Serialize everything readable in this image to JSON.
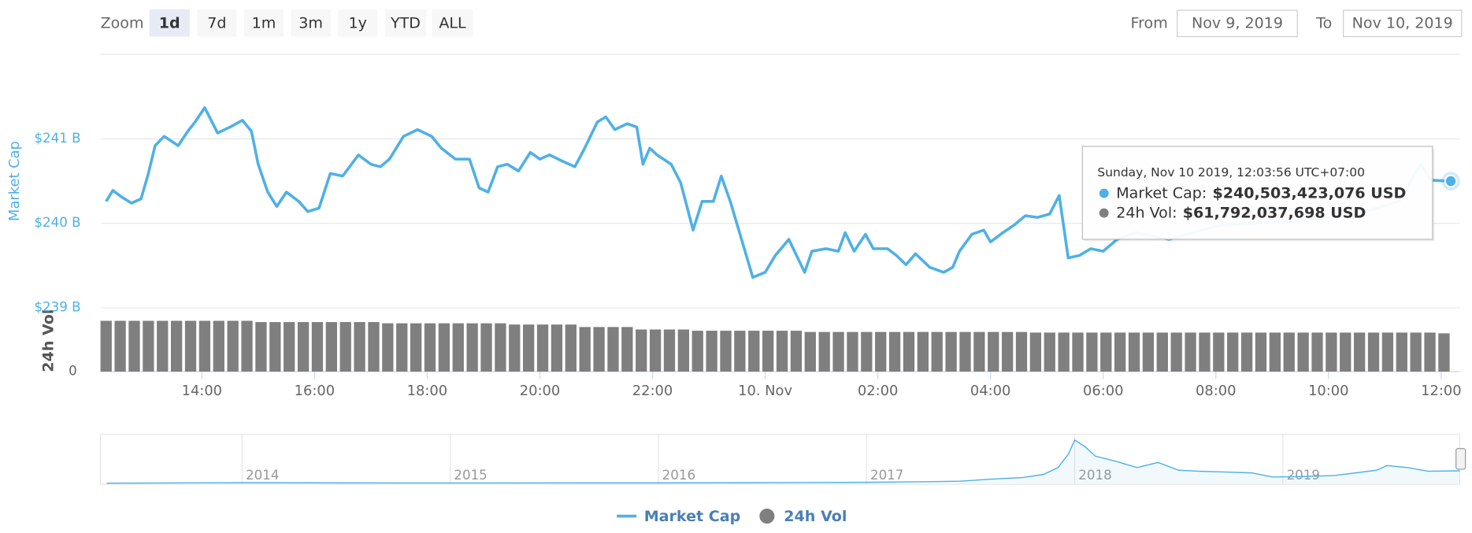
{
  "range_selector": {
    "label": "Zoom",
    "buttons": [
      "1d",
      "7d",
      "1m",
      "3m",
      "1y",
      "YTD",
      "ALL"
    ],
    "selected": "1d",
    "from_label": "From",
    "from": "Nov 9, 2019",
    "to_label": "To",
    "to": "Nov 10, 2019"
  },
  "chart_data": [
    {
      "type": "line",
      "ylabel": "Market Cap",
      "y2label": "24h Vol",
      "xlim": [
        12.2,
        36.33
      ],
      "xticks": [
        {
          "value": 14,
          "label": "14:00"
        },
        {
          "value": 16,
          "label": "16:00"
        },
        {
          "value": 18,
          "label": "18:00"
        },
        {
          "value": 20,
          "label": "20:00"
        },
        {
          "value": 22,
          "label": "22:00"
        },
        {
          "value": 24,
          "label": "10. Nov"
        },
        {
          "value": 26,
          "label": "02:00"
        },
        {
          "value": 28,
          "label": "04:00"
        },
        {
          "value": 30,
          "label": "06:00"
        },
        {
          "value": 32,
          "label": "08:00"
        },
        {
          "value": 34,
          "label": "10:00"
        },
        {
          "value": 36,
          "label": "12:00"
        }
      ],
      "ylim": [
        239,
        242
      ],
      "yticks": [
        {
          "value": 239,
          "label": "$239 B"
        },
        {
          "value": 240,
          "label": "$240 B"
        },
        {
          "value": 241,
          "label": "$241 B"
        }
      ],
      "y2lim": [
        0,
        100
      ],
      "y2ticks": [
        0
      ],
      "grid": true,
      "series": [
        {
          "name": "Market Cap",
          "color": "#4fb0e6",
          "x": [
            12.3,
            12.42,
            12.58,
            12.75,
            12.92,
            13.05,
            13.17,
            13.33,
            13.58,
            13.75,
            13.88,
            14.05,
            14.28,
            14.5,
            14.72,
            14.88,
            15.0,
            15.17,
            15.33,
            15.5,
            15.72,
            15.88,
            16.08,
            16.28,
            16.5,
            16.78,
            17.0,
            17.17,
            17.33,
            17.58,
            17.83,
            18.08,
            18.25,
            18.5,
            18.75,
            18.92,
            19.08,
            19.25,
            19.42,
            19.62,
            19.83,
            20.0,
            20.17,
            20.42,
            20.62,
            20.78,
            21.02,
            21.17,
            21.33,
            21.55,
            21.72,
            21.83,
            21.95,
            22.08,
            22.33,
            22.5,
            22.72,
            22.88,
            23.08,
            23.22,
            23.38,
            23.58,
            23.78,
            24.0,
            24.18,
            24.42,
            24.7,
            24.83,
            25.08,
            25.3,
            25.42,
            25.58,
            25.78,
            25.92,
            26.17,
            26.33,
            26.5,
            26.67,
            26.92,
            27.17,
            27.33,
            27.45,
            27.67,
            27.88,
            28.0,
            28.22,
            28.42,
            28.62,
            28.83,
            29.05,
            29.22,
            29.38,
            29.58,
            29.78,
            30.0,
            30.25,
            30.58,
            31.17,
            32.08,
            33.42,
            34.42,
            35.25,
            35.63,
            35.83,
            36.17
          ],
          "values": [
            240.26,
            240.39,
            240.31,
            240.24,
            240.29,
            240.59,
            240.92,
            241.03,
            240.92,
            241.09,
            241.2,
            241.37,
            241.07,
            241.14,
            241.22,
            241.09,
            240.7,
            240.37,
            240.2,
            240.37,
            240.26,
            240.14,
            240.18,
            240.59,
            240.56,
            240.81,
            240.7,
            240.67,
            240.76,
            241.03,
            241.11,
            241.03,
            240.89,
            240.76,
            240.76,
            240.42,
            240.37,
            240.67,
            240.7,
            240.62,
            240.84,
            240.76,
            240.81,
            240.73,
            240.67,
            240.87,
            241.2,
            241.26,
            241.11,
            241.18,
            241.14,
            240.7,
            240.89,
            240.81,
            240.7,
            240.48,
            239.92,
            240.26,
            240.26,
            240.56,
            240.26,
            239.81,
            239.36,
            239.42,
            239.62,
            239.81,
            239.42,
            239.67,
            239.7,
            239.67,
            239.89,
            239.67,
            239.87,
            239.7,
            239.7,
            239.62,
            239.51,
            239.64,
            239.48,
            239.42,
            239.48,
            239.67,
            239.87,
            239.92,
            239.78,
            239.89,
            239.98,
            240.09,
            240.07,
            240.11,
            240.33,
            239.59,
            239.62,
            239.7,
            239.67,
            239.81,
            239.89,
            239.81,
            239.98,
            240.03,
            240.09,
            240.26,
            240.7,
            240.51,
            240.5
          ]
        },
        {
          "name": "24h Vol",
          "color": "#7f7f7f",
          "type": "bar",
          "axis": "y2",
          "x": [
            12.3,
            12.55,
            12.8,
            13.05,
            13.3,
            13.55,
            13.8,
            14.05,
            14.3,
            14.55,
            14.8,
            15.05,
            15.3,
            15.55,
            15.8,
            16.05,
            16.3,
            16.55,
            16.8,
            17.05,
            17.3,
            17.55,
            17.8,
            18.05,
            18.3,
            18.55,
            18.8,
            19.05,
            19.3,
            19.55,
            19.8,
            20.05,
            20.3,
            20.55,
            20.8,
            21.05,
            21.3,
            21.55,
            21.8,
            22.05,
            22.3,
            22.55,
            22.8,
            23.05,
            23.3,
            23.55,
            23.8,
            24.05,
            24.3,
            24.55,
            24.8,
            25.05,
            25.3,
            25.55,
            25.8,
            26.05,
            26.3,
            26.55,
            26.8,
            27.05,
            27.3,
            27.55,
            27.8,
            28.05,
            28.3,
            28.55,
            28.8,
            29.05,
            29.3,
            29.55,
            29.8,
            30.05,
            30.3,
            30.55,
            30.8,
            31.05,
            31.3,
            31.55,
            31.8,
            32.05,
            32.3,
            32.55,
            32.8,
            33.05,
            33.3,
            33.55,
            33.8,
            34.05,
            34.3,
            34.55,
            34.8,
            35.05,
            35.3,
            35.55,
            35.8,
            36.05
          ],
          "values": [
            82,
            82,
            82,
            82,
            82,
            82,
            82,
            82,
            82,
            82,
            82,
            80,
            80,
            80,
            80,
            80,
            80,
            80,
            80,
            80,
            78,
            78,
            78,
            78,
            78,
            78,
            78,
            78,
            78,
            76,
            76,
            76,
            76,
            76,
            72,
            72,
            72,
            72,
            68,
            68,
            68,
            68,
            66,
            66,
            66,
            66,
            66,
            66,
            66,
            66,
            64,
            64,
            64,
            64,
            64,
            64,
            64,
            64,
            64,
            64,
            64,
            64,
            64,
            64,
            64,
            64,
            63,
            63,
            63,
            63,
            63,
            63,
            63,
            63,
            63,
            63,
            63,
            63,
            63,
            63,
            63,
            63,
            63,
            63,
            63,
            63,
            63,
            63,
            63,
            63,
            63,
            63,
            63,
            63,
            63,
            61.792037698
          ]
        }
      ],
      "tooltip": {
        "title": "Sunday, Nov 10 2019, 12:03:56 UTC+07:00",
        "items": [
          {
            "label": "Market Cap:",
            "value": "$240,503,423,076 USD"
          },
          {
            "label": "24h Vol:",
            "value": "$61,792,037,698 USD"
          }
        ]
      }
    },
    {
      "type": "area",
      "color": "#4fb0e6",
      "xlim": [
        2013.32,
        2019.85
      ],
      "ylim": [
        0,
        900
      ],
      "xticks": [
        2014,
        2015,
        2016,
        2017,
        2018,
        2019
      ],
      "x": [
        2013.35,
        2014.0,
        2014.5,
        2015.0,
        2016.0,
        2016.5,
        2017.0,
        2017.3,
        2017.45,
        2017.6,
        2017.75,
        2017.85,
        2017.92,
        2017.97,
        2018.0,
        2018.05,
        2018.1,
        2018.2,
        2018.3,
        2018.4,
        2018.5,
        2018.6,
        2018.7,
        2018.85,
        2018.95,
        2019.1,
        2019.25,
        2019.45,
        2019.5,
        2019.6,
        2019.7,
        2019.85
      ],
      "values": [
        2,
        10,
        8,
        5,
        7,
        10,
        18,
        30,
        40,
        80,
        110,
        170,
        300,
        560,
        830,
        700,
        520,
        420,
        300,
        400,
        250,
        230,
        220,
        200,
        120,
        130,
        150,
        250,
        340,
        300,
        230,
        240
      ]
    }
  ]
}
